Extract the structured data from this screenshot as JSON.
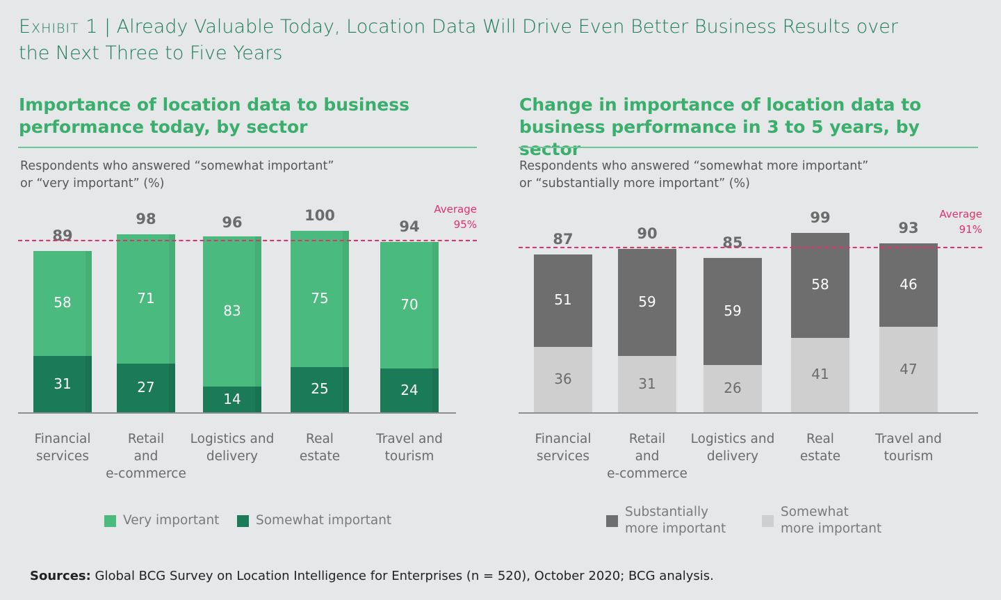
{
  "exhibit": {
    "label": "Exhibit 1",
    "separator": " | ",
    "title": "Already Valuable Today, Location Data Will Drive Even Better Business Results over the Next Three to Five Years"
  },
  "colors": {
    "very_important": "#4aba7e",
    "somewhat_important": "#1b7a57",
    "substantially_more": "#6e6e6e",
    "somewhat_more": "#cfcfcf",
    "average_line": "#e0336b"
  },
  "chart_data": [
    {
      "type": "bar",
      "stacked": true,
      "title": "Importance of location data to business performance today, by sector",
      "subtitle": "Respondents who answered “somewhat important”\nor “very important” (%)",
      "categories": [
        "Financial\nservices",
        "Retail\nand\ne-commerce",
        "Logistics and\ndelivery",
        "Real\nestate",
        "Travel and\ntourism"
      ],
      "series": [
        {
          "name": "Somewhat important",
          "values": [
            31,
            27,
            14,
            25,
            24
          ]
        },
        {
          "name": "Very important",
          "values": [
            58,
            71,
            83,
            75,
            70
          ]
        }
      ],
      "totals": [
        89,
        98,
        96,
        100,
        94
      ],
      "average": {
        "label": "Average\n95%",
        "value": 95
      },
      "ylim": [
        0,
        100
      ],
      "legend": [
        "Very important",
        "Somewhat important"
      ],
      "legend_placement": "bottom"
    },
    {
      "type": "bar",
      "stacked": true,
      "title": "Change in importance of location data to business performance in 3 to 5 years, by sector",
      "subtitle": "Respondents who answered “somewhat more important”\nor “substantially more important” (%)",
      "categories": [
        "Financial\nservices",
        "Retail\nand\ne-commerce",
        "Logistics and\ndelivery",
        "Real\nestate",
        "Travel and\ntourism"
      ],
      "series": [
        {
          "name": "Somewhat\nmore important",
          "values": [
            36,
            31,
            26,
            41,
            47
          ]
        },
        {
          "name": "Substantially\nmore important",
          "values": [
            51,
            59,
            59,
            58,
            46
          ]
        }
      ],
      "totals": [
        87,
        90,
        85,
        99,
        93
      ],
      "average": {
        "label": "Average\n91%",
        "value": 91
      },
      "ylim": [
        0,
        100
      ],
      "legend": [
        "Substantially\nmore important",
        "Somewhat\nmore important"
      ],
      "legend_placement": "bottom"
    }
  ],
  "sources": {
    "label": "Sources:",
    "text": " Global BCG Survey on Location Intelligence for Enterprises (n = 520), October 2020; BCG analysis."
  }
}
